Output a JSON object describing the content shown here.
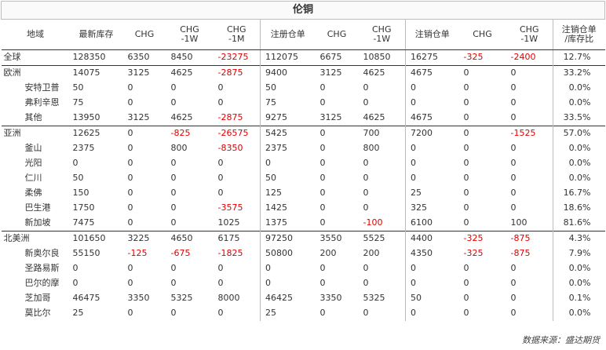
{
  "title": "伦铜",
  "headers": [
    "地域",
    "最新库存",
    "CHG",
    "CHG\n-1W",
    "CHG\n-1M",
    "注册仓单",
    "CHG",
    "CHG\n-1W",
    "注销仓单",
    "CHG",
    "CHG\n-1W",
    "注销仓单\n/库存比"
  ],
  "rows": [
    {
      "name": "全球",
      "level": 0,
      "sep": true,
      "values": [
        "128350",
        "6350",
        "8450",
        "-23275",
        "112075",
        "6675",
        "10850",
        "16275",
        "-325",
        "-2400",
        "12.7%"
      ]
    },
    {
      "name": "欧洲",
      "level": 0,
      "sep": true,
      "values": [
        "14075",
        "3125",
        "4625",
        "-2875",
        "9400",
        "3125",
        "4625",
        "4675",
        "0",
        "0",
        "33.2%"
      ]
    },
    {
      "name": "安特卫普",
      "level": 1,
      "sep": false,
      "values": [
        "50",
        "0",
        "0",
        "0",
        "50",
        "0",
        "0",
        "0",
        "0",
        "0",
        "0.0%"
      ]
    },
    {
      "name": "弗利辛恩",
      "level": 1,
      "sep": false,
      "values": [
        "75",
        "0",
        "0",
        "0",
        "75",
        "0",
        "0",
        "0",
        "0",
        "0",
        "0.0%"
      ]
    },
    {
      "name": "其他",
      "level": 1,
      "sep": false,
      "values": [
        "13950",
        "3125",
        "4625",
        "-2875",
        "9275",
        "3125",
        "4625",
        "4675",
        "0",
        "0",
        "33.5%"
      ]
    },
    {
      "name": "亚洲",
      "level": 0,
      "sep": true,
      "values": [
        "12625",
        "0",
        "-825",
        "-26575",
        "5425",
        "0",
        "700",
        "7200",
        "0",
        "-1525",
        "57.0%"
      ]
    },
    {
      "name": "釜山",
      "level": 1,
      "sep": false,
      "values": [
        "2375",
        "0",
        "800",
        "-8350",
        "2375",
        "0",
        "800",
        "0",
        "0",
        "0",
        "0.0%"
      ]
    },
    {
      "name": "光阳",
      "level": 1,
      "sep": false,
      "values": [
        "0",
        "0",
        "0",
        "0",
        "0",
        "0",
        "0",
        "0",
        "0",
        "0",
        "0.0%"
      ]
    },
    {
      "name": "仁川",
      "level": 1,
      "sep": false,
      "values": [
        "50",
        "0",
        "0",
        "0",
        "50",
        "0",
        "0",
        "0",
        "0",
        "0",
        "0.0%"
      ]
    },
    {
      "name": "柔佛",
      "level": 1,
      "sep": false,
      "values": [
        "150",
        "0",
        "0",
        "0",
        "125",
        "0",
        "0",
        "25",
        "0",
        "0",
        "16.7%"
      ]
    },
    {
      "name": "巴生港",
      "level": 1,
      "sep": false,
      "values": [
        "1750",
        "0",
        "0",
        "-3575",
        "1425",
        "0",
        "0",
        "325",
        "0",
        "0",
        "18.6%"
      ]
    },
    {
      "name": "新加坡",
      "level": 1,
      "sep": false,
      "values": [
        "7475",
        "0",
        "0",
        "1025",
        "1375",
        "0",
        "-100",
        "6100",
        "0",
        "100",
        "81.6%"
      ]
    },
    {
      "name": "北美洲",
      "level": 0,
      "sep": true,
      "values": [
        "101650",
        "3225",
        "4650",
        "6175",
        "97250",
        "3550",
        "5525",
        "4400",
        "-325",
        "-875",
        "4.3%"
      ]
    },
    {
      "name": "新奥尔良",
      "level": 1,
      "sep": false,
      "values": [
        "55150",
        "-125",
        "-675",
        "-1825",
        "50800",
        "200",
        "200",
        "4350",
        "-325",
        "-875",
        "7.9%"
      ]
    },
    {
      "name": "圣路易斯",
      "level": 1,
      "sep": false,
      "values": [
        "0",
        "0",
        "0",
        "0",
        "0",
        "0",
        "0",
        "0",
        "0",
        "0",
        "0.0%"
      ]
    },
    {
      "name": "巴尔的摩",
      "level": 1,
      "sep": false,
      "values": [
        "0",
        "0",
        "0",
        "0",
        "0",
        "0",
        "0",
        "0",
        "0",
        "0",
        "0.0%"
      ]
    },
    {
      "name": "芝加哥",
      "level": 1,
      "sep": false,
      "values": [
        "46475",
        "3350",
        "5325",
        "8000",
        "46425",
        "3350",
        "5325",
        "50",
        "0",
        "0",
        "0.1%"
      ]
    },
    {
      "name": "莫比尔",
      "level": 1,
      "sep": false,
      "values": [
        "25",
        "0",
        "0",
        "0",
        "25",
        "0",
        "0",
        "0",
        "0",
        "0",
        "0.0%"
      ]
    }
  ],
  "source": "数据来源：盛达期货",
  "colors": {
    "negative": "#e00000",
    "text": "#333333",
    "grid": "#bdbdbd"
  }
}
